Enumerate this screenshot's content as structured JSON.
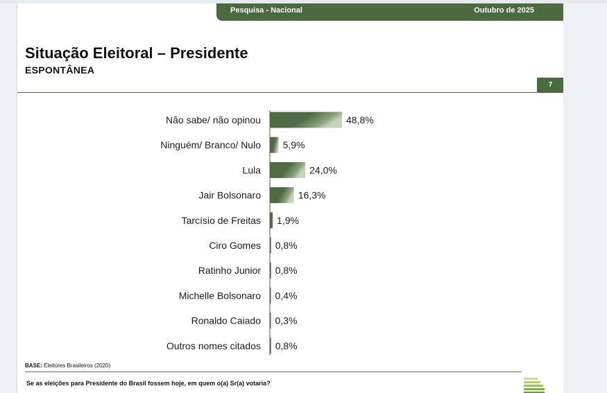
{
  "header": {
    "left_label": "Pesquisa - Nacional",
    "right_label": "Outubro de 2025"
  },
  "slide": {
    "title": "Situação Eleitoral – Presidente",
    "subtitle": "ESPONTÂNEA",
    "page_number": "7",
    "base_label": "BASE:",
    "base_value": "Eleitores Brasileiros (2020)",
    "question": "Se as eleições para Presidente do Brasil fossem hoje, em quem o(a) Sr(a) votaria?"
  },
  "colors": {
    "accent_green": "#4b6a3f",
    "bar_dark": "#4f6b43",
    "bar_light": "#c7d4bd"
  },
  "chart_data": {
    "type": "bar",
    "orientation": "horizontal",
    "categories": [
      "Não sabe/ não opinou",
      "Ninguém/ Branco/ Nulo",
      "Lula",
      "Jair Bolsonaro",
      "Tarcísio de Freitas",
      "Ciro Gomes",
      "Ratinho Junior",
      "Michelle Bolsonaro",
      "Ronaldo Caiado",
      "Outros nomes citados"
    ],
    "values": [
      48.8,
      5.9,
      24.0,
      16.3,
      1.9,
      0.8,
      0.8,
      0.4,
      0.3,
      0.8
    ],
    "value_labels": [
      "48,8%",
      "5,9%",
      "24,0%",
      "16,3%",
      "1,9%",
      "0,8%",
      "0,8%",
      "0,4%",
      "0,3%",
      "0,8%"
    ],
    "xlim": [
      0,
      100
    ],
    "grid": false,
    "legend": "none"
  }
}
